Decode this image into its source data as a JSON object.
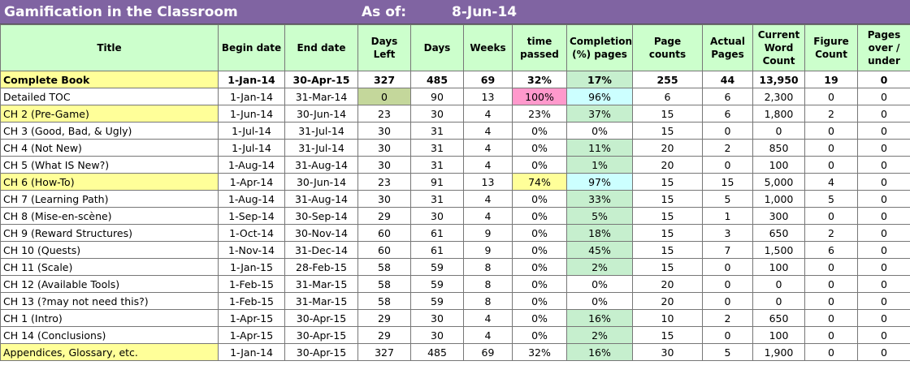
{
  "header": {
    "title": "Gamification in the Classroom",
    "as_of_label": "As of:",
    "as_of_date": "8-Jun-14"
  },
  "table": {
    "columns": [
      "Title",
      "Begin date",
      "End date",
      "Days Left",
      "Days",
      "Weeks",
      "time passed",
      "Completion (%) pages",
      "Page counts",
      "Actual Pages",
      "Current Word Count",
      "Figure Count",
      "Pages over / under"
    ],
    "rows": [
      [
        "Complete Book",
        "1-Jan-14",
        "30-Apr-15",
        "327",
        "485",
        "69",
        "32%",
        "17%",
        "255",
        "44",
        "13,950",
        "19",
        "0"
      ],
      [
        "Detailed TOC",
        "1-Jan-14",
        "31-Mar-14",
        "0",
        "90",
        "13",
        "100%",
        "96%",
        "6",
        "6",
        "2,300",
        "0",
        "0"
      ],
      [
        "CH 2 (Pre-Game)",
        "1-Jun-14",
        "30-Jun-14",
        "23",
        "30",
        "4",
        "23%",
        "37%",
        "15",
        "6",
        "1,800",
        "2",
        "0"
      ],
      [
        "CH 3 (Good, Bad, & Ugly)",
        "1-Jul-14",
        "31-Jul-14",
        "30",
        "31",
        "4",
        "0%",
        "0%",
        "15",
        "0",
        "0",
        "0",
        "0"
      ],
      [
        "CH 4 (Not New)",
        "1-Jul-14",
        "31-Jul-14",
        "30",
        "31",
        "4",
        "0%",
        "11%",
        "20",
        "2",
        "850",
        "0",
        "0"
      ],
      [
        "CH 5 (What IS New?)",
        "1-Aug-14",
        "31-Aug-14",
        "30",
        "31",
        "4",
        "0%",
        "1%",
        "20",
        "0",
        "100",
        "0",
        "0"
      ],
      [
        "CH 6 (How-To)",
        "1-Apr-14",
        "30-Jun-14",
        "23",
        "91",
        "13",
        "74%",
        "97%",
        "15",
        "15",
        "5,000",
        "4",
        "0"
      ],
      [
        "CH 7 (Learning Path)",
        "1-Aug-14",
        "31-Aug-14",
        "30",
        "31",
        "4",
        "0%",
        "33%",
        "15",
        "5",
        "1,000",
        "5",
        "0"
      ],
      [
        "CH 8 (Mise-en-scène)",
        "1-Sep-14",
        "30-Sep-14",
        "29",
        "30",
        "4",
        "0%",
        "5%",
        "15",
        "1",
        "300",
        "0",
        "0"
      ],
      [
        "CH 9 (Reward Structures)",
        "1-Oct-14",
        "30-Nov-14",
        "60",
        "61",
        "9",
        "0%",
        "18%",
        "15",
        "3",
        "650",
        "2",
        "0"
      ],
      [
        "CH 10 (Quests)",
        "1-Nov-14",
        "31-Dec-14",
        "60",
        "61",
        "9",
        "0%",
        "45%",
        "15",
        "7",
        "1,500",
        "6",
        "0"
      ],
      [
        "CH 11 (Scale)",
        "1-Jan-15",
        "28-Feb-15",
        "58",
        "59",
        "8",
        "0%",
        "2%",
        "15",
        "0",
        "100",
        "0",
        "0"
      ],
      [
        "CH 12 (Available Tools)",
        "1-Feb-15",
        "31-Mar-15",
        "58",
        "59",
        "8",
        "0%",
        "0%",
        "20",
        "0",
        "0",
        "0",
        "0"
      ],
      [
        "CH 13 (?may not need this?)",
        "1-Feb-15",
        "31-Mar-15",
        "58",
        "59",
        "8",
        "0%",
        "0%",
        "20",
        "0",
        "0",
        "0",
        "0"
      ],
      [
        "CH 1 (Intro)",
        "1-Apr-15",
        "30-Apr-15",
        "29",
        "30",
        "4",
        "0%",
        "16%",
        "10",
        "2",
        "650",
        "0",
        "0"
      ],
      [
        "CH 14 (Conclusions)",
        "1-Apr-15",
        "30-Apr-15",
        "29",
        "30",
        "4",
        "0%",
        "2%",
        "15",
        "0",
        "100",
        "0",
        "0"
      ],
      [
        "Appendices, Glossary, etc.",
        "1-Jan-14",
        "30-Apr-15",
        "327",
        "485",
        "69",
        "32%",
        "16%",
        "30",
        "5",
        "1,900",
        "0",
        "0"
      ]
    ]
  }
}
